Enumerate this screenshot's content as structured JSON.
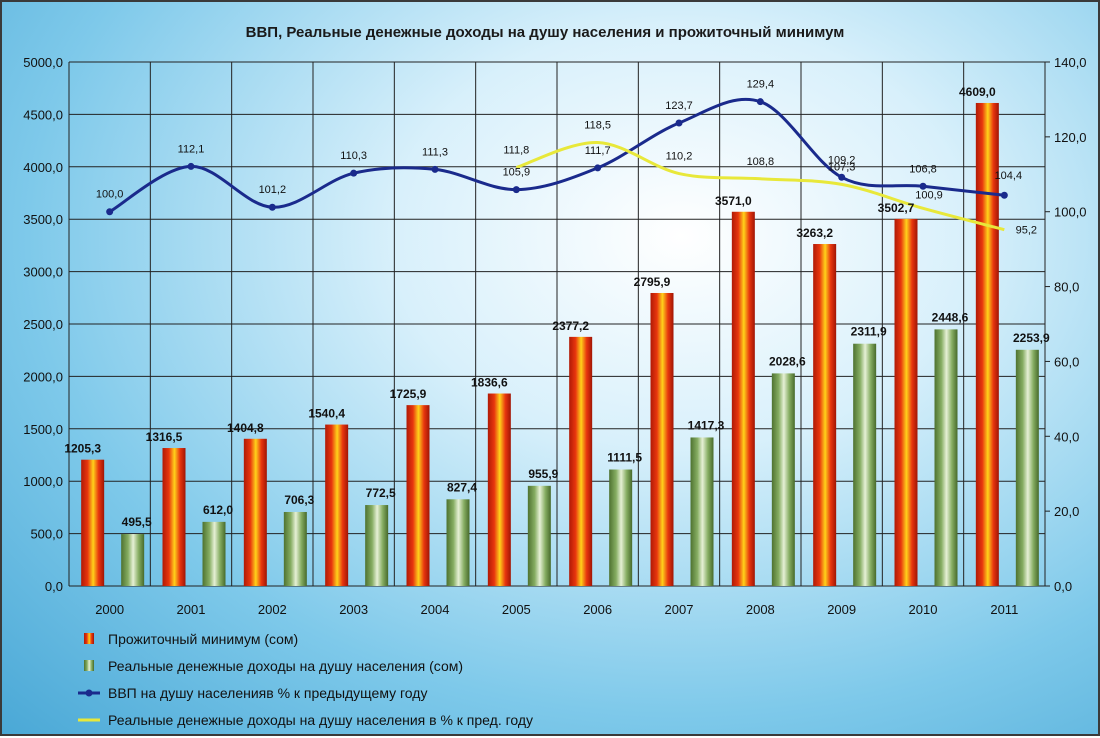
{
  "chart_data": {
    "type": "bar",
    "title": "ВВП, Реальные денежные доходы на душу населения и прожиточный минимум",
    "categories": [
      "2000",
      "2001",
      "2002",
      "2003",
      "2004",
      "2005",
      "2006",
      "2007",
      "2008",
      "2009",
      "2010",
      "2011"
    ],
    "left_axis": {
      "min": 0,
      "max": 5000,
      "step": 500,
      "tick_labels": [
        "0,0",
        "500,0",
        "1000,0",
        "1500,0",
        "2000,0",
        "2500,0",
        "3000,0",
        "3500,0",
        "4000,0",
        "4500,0",
        "5000,0"
      ]
    },
    "right_axis": {
      "min": 0,
      "max": 140,
      "step": 20,
      "tick_labels": [
        "0,0",
        "20,0",
        "40,0",
        "60,0",
        "80,0",
        "100,0",
        "120,0",
        "140,0"
      ]
    },
    "grid": true,
    "legend_position": "bottom-left",
    "bar_series": [
      {
        "name": "Прожиточный  минимум (сом)",
        "color": "#e0310d",
        "axis": "left",
        "values": [
          1205.3,
          1316.5,
          1404.8,
          1540.4,
          1725.9,
          1836.6,
          2377.2,
          2795.9,
          3571.0,
          3263.2,
          3502.7,
          4609.0
        ],
        "labels": [
          "1205,3",
          "1316,5",
          "1404,8",
          "1540,4",
          "1725,9",
          "1836,6",
          "2377,2",
          "2795,9",
          "3571,0",
          "3263,2",
          "3502,7",
          "4609,0"
        ]
      },
      {
        "name": "Реальные денежные доходы на душу населения (сом)",
        "color": "#6e9a4a",
        "axis": "left",
        "values": [
          495.5,
          612.0,
          706.3,
          772.5,
          827.4,
          955.9,
          1111.5,
          1417.3,
          2028.6,
          2311.9,
          2448.6,
          2253.9
        ],
        "labels": [
          "495,5",
          "612,0",
          "706,3",
          "772,5",
          "827,4",
          "955,9",
          "1111,5",
          "1417,3",
          "2028,6",
          "2311,9",
          "2448,6",
          "2253,9"
        ]
      }
    ],
    "line_series": [
      {
        "name": "ВВП  на душу населенияв % к предыдущему году",
        "color": "#1a2a8c",
        "axis": "right",
        "markers": true,
        "values": [
          100.0,
          112.1,
          101.2,
          110.3,
          111.3,
          105.9,
          111.7,
          123.7,
          129.4,
          109.2,
          106.8,
          104.4
        ],
        "labels": [
          "100,0",
          "112,1",
          "101,2",
          "110,3",
          "111,3",
          "105,9",
          "111,7",
          "123,7",
          "129,4",
          "109,2",
          "106,8",
          "104,4"
        ]
      },
      {
        "name": "Реальные денежные доходы на душу населения в % к пред. году",
        "color": "#e8e83a",
        "axis": "right",
        "markers": false,
        "start_index": 5,
        "values": [
          111.8,
          118.5,
          110.2,
          108.8,
          107.3,
          100.9,
          95.2
        ],
        "labels": [
          "111,8",
          "118,5",
          "110,2",
          "108,8",
          "107,3",
          "100,9",
          "95,2"
        ]
      }
    ]
  }
}
